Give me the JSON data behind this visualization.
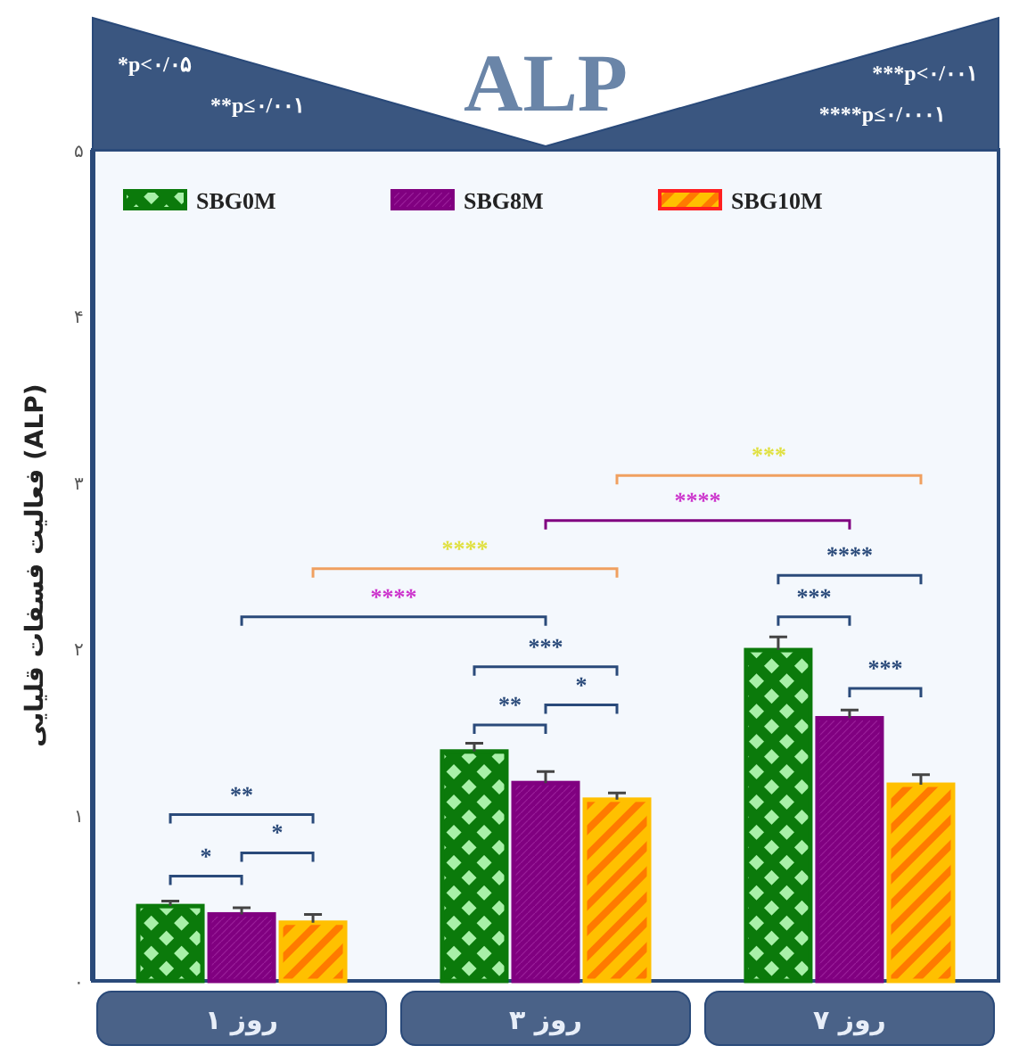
{
  "chart_data": {
    "type": "bar",
    "title": "ALP",
    "ylabel": "فعالیت فسفات قلیایی (ALP)",
    "categories": [
      "روز ۱",
      "روز ۳",
      "روز ۷"
    ],
    "series": [
      {
        "name": "SBG0M",
        "color": "#0b7a0b",
        "values": [
          0.45,
          1.38,
          1.99
        ],
        "errors": [
          0.03,
          0.05,
          0.08
        ]
      },
      {
        "name": "SBG8M",
        "color": "#800080",
        "values": [
          0.4,
          1.19,
          1.58
        ],
        "errors": [
          0.04,
          0.07,
          0.05
        ]
      },
      {
        "name": "SBG10M",
        "color": "#ffc000",
        "values": [
          0.35,
          1.09,
          1.18
        ],
        "errors": [
          0.05,
          0.04,
          0.06
        ]
      }
    ],
    "ylim": [
      0,
      5
    ],
    "yticks": [
      {
        "value": 0,
        "label": "۰"
      },
      {
        "value": 1,
        "label": "۱"
      },
      {
        "value": 2,
        "label": "۲"
      },
      {
        "value": 3,
        "label": "۳"
      },
      {
        "value": 4,
        "label": "۴"
      },
      {
        "value": 5,
        "label": "۵"
      }
    ],
    "legend": "top",
    "grid": false,
    "annotations": [
      "*p<۰/۰۵",
      "**p≤۰/۰۰۱",
      "***p<۰/۰۰۱",
      "****p≤۰/۰۰۰۱",
      "**",
      "*",
      "*",
      "***",
      "**",
      "*",
      "****",
      "***",
      "***",
      "****",
      "****",
      "****",
      "***"
    ]
  }
}
